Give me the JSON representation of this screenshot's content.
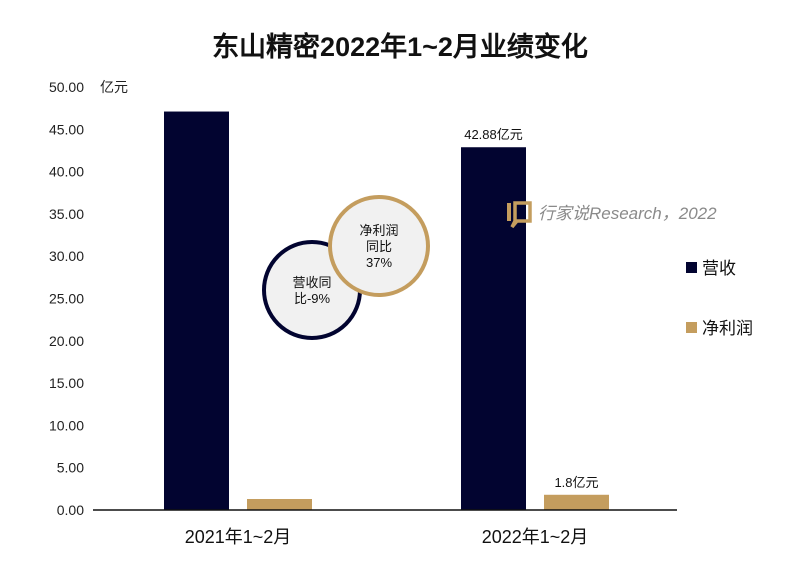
{
  "chart_data": {
    "type": "bar",
    "title": "东山精密2022年1~2月业绩变化",
    "unit_label": "亿元",
    "categories": [
      "2021年1~2月",
      "2022年1~2月"
    ],
    "series": [
      {
        "name": "营收",
        "values": [
          47.1,
          42.88
        ],
        "color": "#020430",
        "data_labels": [
          "",
          "42.88亿元"
        ]
      },
      {
        "name": "净利润",
        "values": [
          1.3,
          1.8
        ],
        "color": "#C49D5E",
        "data_labels": [
          "",
          "1.8亿元"
        ]
      }
    ],
    "ylim": [
      0,
      50
    ],
    "yticks": [
      "0.00",
      "5.00",
      "10.00",
      "15.00",
      "20.00",
      "25.00",
      "30.00",
      "35.00",
      "40.00",
      "45.00",
      "50.00"
    ],
    "grid": false,
    "legend": "right",
    "annotations": [
      {
        "text_lines": [
          "营收同",
          "比-9%"
        ],
        "color": "#020430"
      },
      {
        "text_lines": [
          "净利润",
          "同比",
          "37%"
        ],
        "color": "#C49D5E"
      }
    ],
    "watermark": "行家说Research，2022"
  }
}
